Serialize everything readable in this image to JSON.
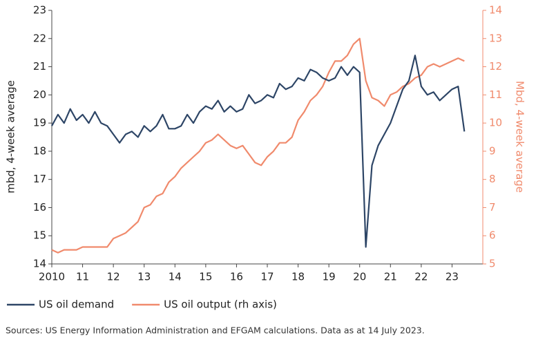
{
  "chart_data": {
    "type": "line",
    "x": [
      2010.0,
      2010.2,
      2010.4,
      2010.6,
      2010.8,
      2011.0,
      2011.2,
      2011.4,
      2011.6,
      2011.8,
      2012.0,
      2012.2,
      2012.4,
      2012.6,
      2012.8,
      2013.0,
      2013.2,
      2013.4,
      2013.6,
      2013.8,
      2014.0,
      2014.2,
      2014.4,
      2014.6,
      2014.8,
      2015.0,
      2015.2,
      2015.4,
      2015.6,
      2015.8,
      2016.0,
      2016.2,
      2016.4,
      2016.6,
      2016.8,
      2017.0,
      2017.2,
      2017.4,
      2017.6,
      2017.8,
      2018.0,
      2018.2,
      2018.4,
      2018.6,
      2018.8,
      2019.0,
      2019.2,
      2019.4,
      2019.6,
      2019.8,
      2020.0,
      2020.2,
      2020.4,
      2020.6,
      2020.8,
      2021.0,
      2021.2,
      2021.4,
      2021.6,
      2021.8,
      2022.0,
      2022.2,
      2022.4,
      2022.6,
      2022.8,
      2023.0,
      2023.2,
      2023.4
    ],
    "series": [
      {
        "name": "US oil demand",
        "color": "#2d4566",
        "axis": "y",
        "values": [
          18.9,
          19.3,
          19.0,
          19.5,
          19.1,
          19.3,
          19.0,
          19.4,
          19.0,
          18.9,
          18.6,
          18.3,
          18.6,
          18.7,
          18.5,
          18.9,
          18.7,
          18.9,
          19.3,
          18.8,
          18.8,
          18.9,
          19.3,
          19.0,
          19.4,
          19.6,
          19.5,
          19.8,
          19.4,
          19.6,
          19.4,
          19.5,
          20.0,
          19.7,
          19.8,
          20.0,
          19.9,
          20.4,
          20.2,
          20.3,
          20.6,
          20.5,
          20.9,
          20.8,
          20.6,
          20.5,
          20.6,
          21.0,
          20.7,
          21.0,
          20.8,
          14.6,
          17.5,
          18.2,
          18.6,
          19.0,
          19.6,
          20.2,
          20.5,
          21.4,
          20.3,
          20.0,
          20.1,
          19.8,
          20.0,
          20.2,
          20.3,
          18.7
        ]
      },
      {
        "name": "US oil output (rh axis)",
        "color": "#f08a6c",
        "axis": "y2",
        "values": [
          5.5,
          5.4,
          5.5,
          5.5,
          5.5,
          5.6,
          5.6,
          5.6,
          5.6,
          5.6,
          5.9,
          6.0,
          6.1,
          6.3,
          6.5,
          7.0,
          7.1,
          7.4,
          7.5,
          7.9,
          8.1,
          8.4,
          8.6,
          8.8,
          9.0,
          9.3,
          9.4,
          9.6,
          9.4,
          9.2,
          9.1,
          9.2,
          8.9,
          8.6,
          8.5,
          8.8,
          9.0,
          9.3,
          9.3,
          9.5,
          10.1,
          10.4,
          10.8,
          11.0,
          11.3,
          11.8,
          12.2,
          12.2,
          12.4,
          12.8,
          13.0,
          11.5,
          10.9,
          10.8,
          10.6,
          11.0,
          11.1,
          11.3,
          11.4,
          11.6,
          11.7,
          12.0,
          12.1,
          12.0,
          12.1,
          12.2,
          12.3,
          12.2
        ]
      }
    ],
    "xlim": [
      2010,
      2024
    ],
    "xticks": [
      2010,
      {
        "value": 2011,
        "label": "11"
      },
      {
        "value": 2012,
        "label": "12"
      },
      {
        "value": 2013,
        "label": "13"
      },
      {
        "value": 2014,
        "label": "14"
      },
      {
        "value": 2015,
        "label": "15"
      },
      {
        "value": 2016,
        "label": "16"
      },
      {
        "value": 2017,
        "label": "17"
      },
      {
        "value": 2018,
        "label": "18"
      },
      {
        "value": 2019,
        "label": "19"
      },
      {
        "value": 2020,
        "label": "20"
      },
      {
        "value": 2021,
        "label": "21"
      },
      {
        "value": 2022,
        "label": "22"
      },
      {
        "value": 2023,
        "label": "23"
      }
    ],
    "ylim": [
      14,
      23
    ],
    "yticks": [
      14,
      15,
      16,
      17,
      18,
      19,
      20,
      21,
      22,
      23
    ],
    "y2lim": [
      5,
      14
    ],
    "y2ticks": [
      5,
      6,
      7,
      8,
      9,
      10,
      11,
      12,
      13,
      14
    ],
    "ylabel": "mbd, 4-week average",
    "y2label": "Mbd, 4-week average",
    "source": "Sources: US Energy Information Administration and EFGAM calculations. Data as at 14 July 2023.",
    "grid": false
  }
}
